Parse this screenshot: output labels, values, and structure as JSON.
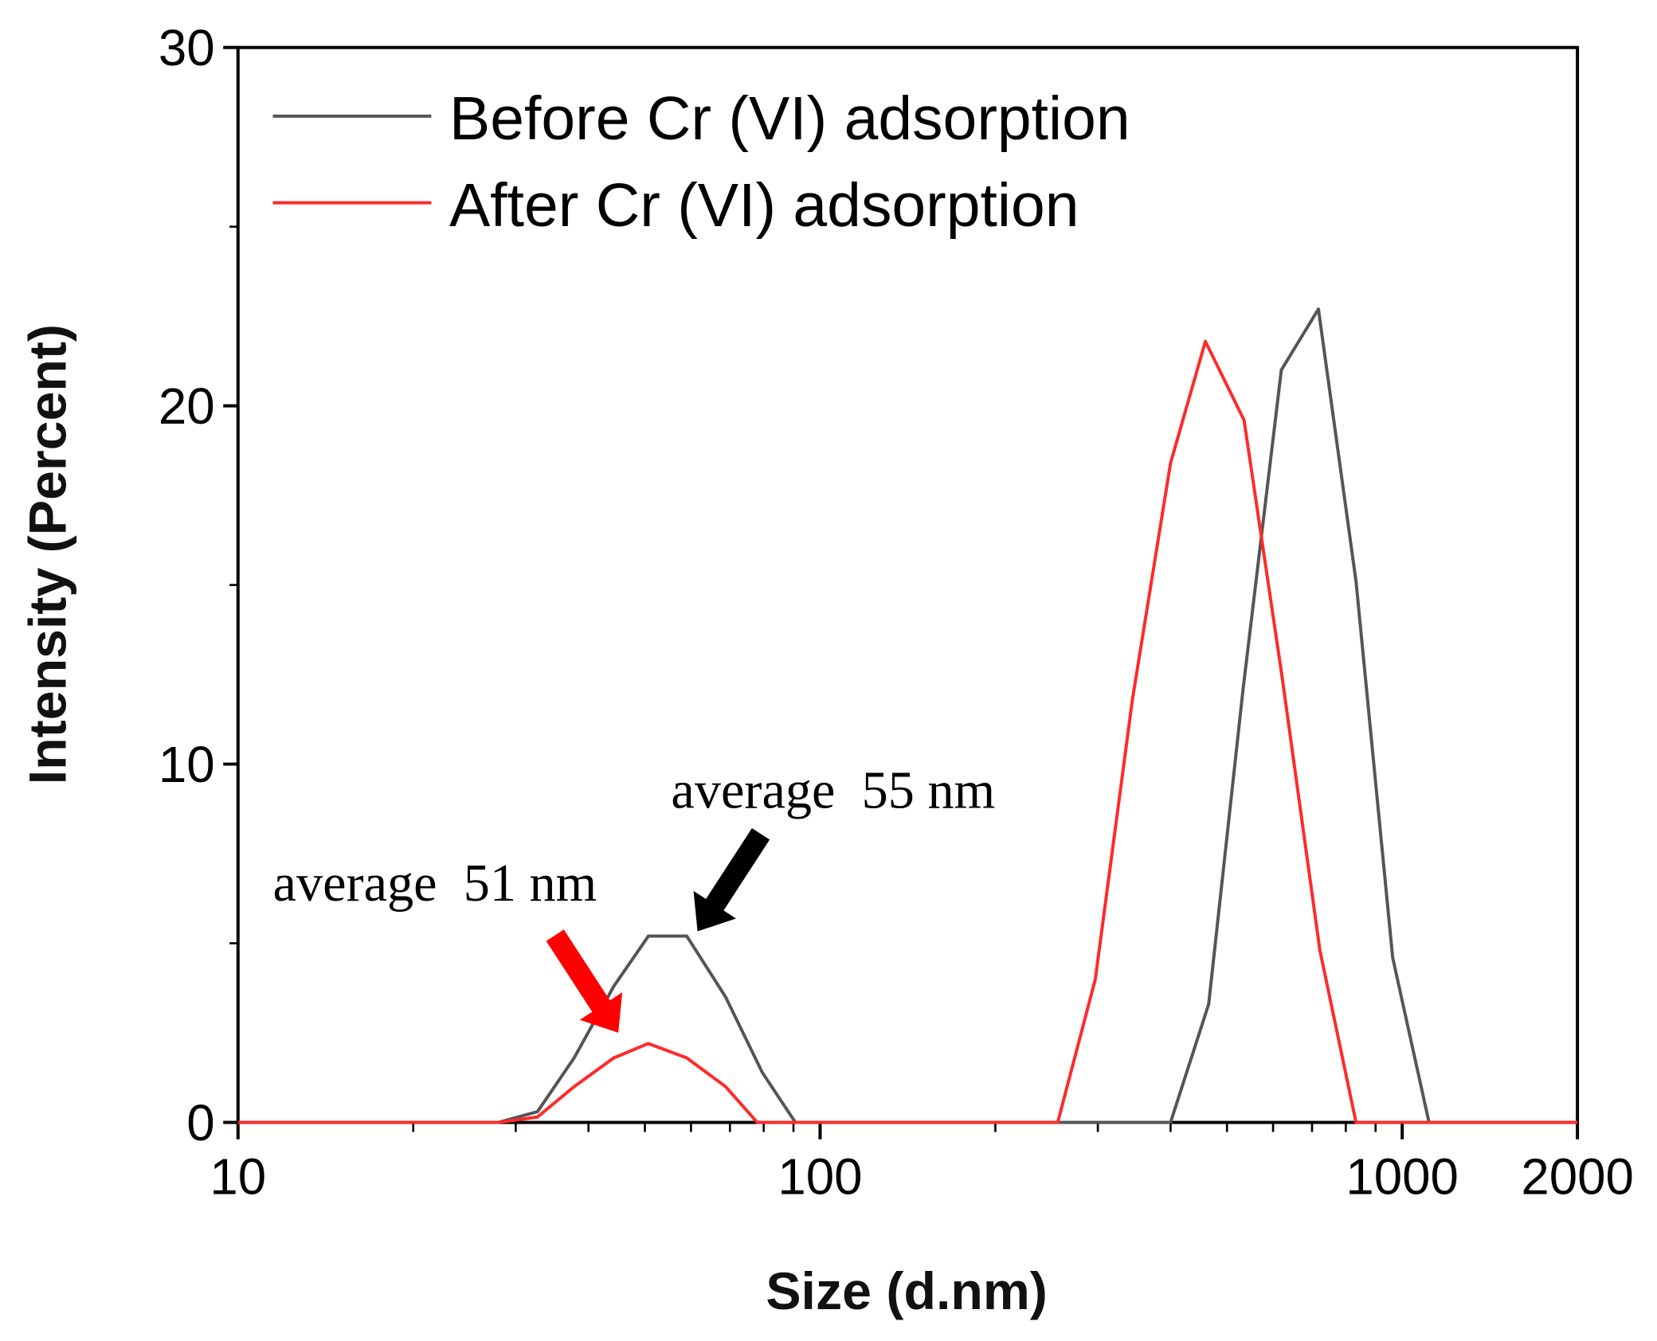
{
  "chart_data": {
    "type": "line",
    "title": "",
    "xlabel": "Size (d.nm)",
    "ylabel": "Intensity (Percent)",
    "xscale": "log",
    "xlim": [
      10,
      2000
    ],
    "ylim": [
      0,
      30
    ],
    "xticks": [
      10,
      100,
      1000,
      2000
    ],
    "xtick_labels": [
      "10",
      "100",
      "1000",
      "2000"
    ],
    "yticks": [
      0,
      10,
      20,
      30
    ],
    "ytick_labels": [
      "0",
      "10",
      "20",
      "30"
    ],
    "grid": false,
    "legend_position": "top-left",
    "series": [
      {
        "name": "Before Cr (VI) adsorption",
        "color": "#555555",
        "x": [
          10,
          28,
          32.7,
          37.8,
          44.2,
          50.7,
          59,
          68.8,
          79.5,
          90.7,
          400,
          465,
          533,
          620,
          718,
          833,
          963,
          1112,
          2000
        ],
        "y": [
          0,
          0,
          0.3,
          1.8,
          3.8,
          5.2,
          5.2,
          3.5,
          1.4,
          0,
          0,
          3.3,
          12.1,
          21.0,
          22.7,
          15.1,
          4.6,
          0,
          0
        ]
      },
      {
        "name": "After Cr (VI) adsorption",
        "color": "#ff2a2a",
        "x": [
          10,
          28,
          32.7,
          37.8,
          44.2,
          50.7,
          59,
          68.8,
          78,
          256,
          297,
          344,
          400,
          459,
          535,
          621,
          722,
          833,
          2000
        ],
        "y": [
          0,
          0,
          0.15,
          1.0,
          1.8,
          2.2,
          1.8,
          1.0,
          0,
          0,
          4.0,
          11.8,
          18.4,
          21.8,
          19.6,
          12.5,
          4.8,
          0,
          0
        ]
      }
    ],
    "annotations": [
      {
        "text": "average  55 nm",
        "series": "Before Cr (VI) adsorption",
        "arrow_color": "#000000"
      },
      {
        "text": "average  51 nm",
        "series": "After Cr (VI) adsorption",
        "arrow_color": "#ff0000"
      }
    ]
  }
}
